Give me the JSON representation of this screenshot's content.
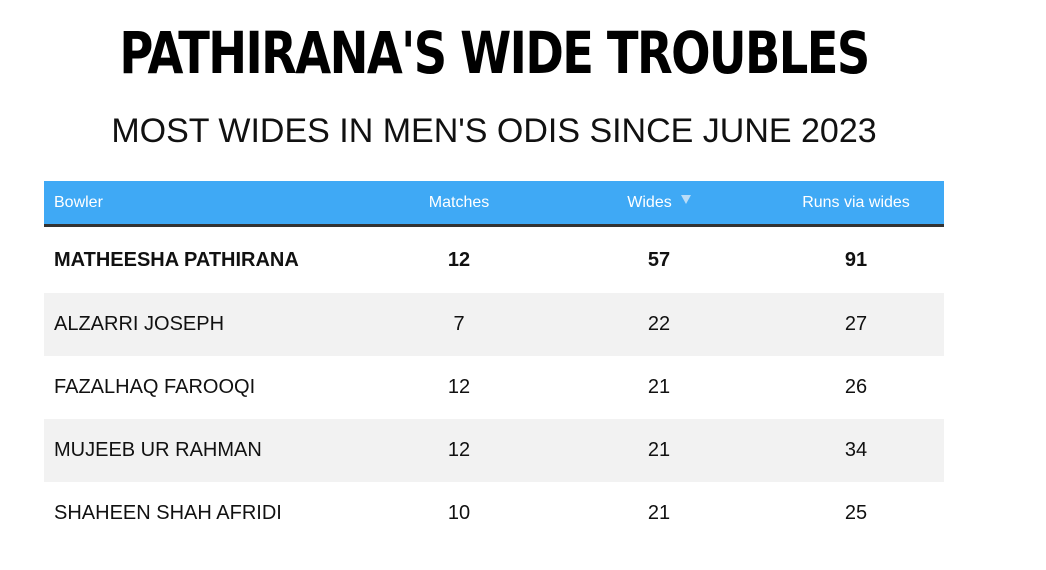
{
  "title": "PATHIRANA'S WIDE TROUBLES",
  "subtitle": "MOST WIDES IN MEN'S ODIS SINCE JUNE 2023",
  "colors": {
    "header_bg": "#3fa9f5",
    "header_text": "#ffffff",
    "row_shade": "#f2f2f2",
    "header_rule": "#333333"
  },
  "chart_data": {
    "type": "table",
    "columns": [
      "Bowler",
      "Matches",
      "Wides",
      "Runs via wides"
    ],
    "sorted_by": "Wides",
    "sort_direction": "descending",
    "rows": [
      {
        "bowler": "MATHEESHA PATHIRANA",
        "matches": "12",
        "wides": "57",
        "runs": "91",
        "highlighted": true
      },
      {
        "bowler": "ALZARRI JOSEPH",
        "matches": "7",
        "wides": "22",
        "runs": "27"
      },
      {
        "bowler": "FAZALHAQ FAROOQI",
        "matches": "12",
        "wides": "21",
        "runs": "26"
      },
      {
        "bowler": "MUJEEB UR RAHMAN",
        "matches": "12",
        "wides": "21",
        "runs": "34"
      },
      {
        "bowler": "SHAHEEN SHAH AFRIDI",
        "matches": "10",
        "wides": "21",
        "runs": "25"
      }
    ]
  }
}
